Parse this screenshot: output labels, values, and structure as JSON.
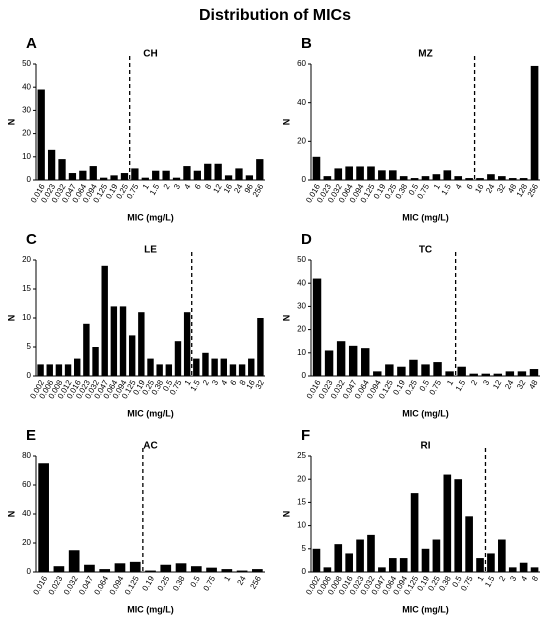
{
  "title": "Distribution of MICs",
  "chart_data": [
    {
      "type": "bar",
      "label": "A",
      "title": "CH",
      "xlabel": "MIC (mg/L)",
      "ylabel": "N",
      "color": "#000000",
      "categories": [
        "0.016",
        "0.023",
        "0.032",
        "0.047",
        "0.064",
        "0.094",
        "0.125",
        "0.19",
        "0.25",
        "0.75",
        "1",
        "1.5",
        "2",
        "3",
        "4",
        "6",
        "8",
        "12",
        "16",
        "24",
        "96",
        "256"
      ],
      "values": [
        39,
        13,
        9,
        3,
        4,
        6,
        1,
        2,
        3,
        5,
        1,
        4,
        4,
        1,
        6,
        4,
        7,
        7,
        2,
        5,
        2,
        9
      ],
      "breakpoint_after": 8,
      "ylim": [
        0,
        50
      ],
      "yticks": [
        0,
        10,
        20,
        30,
        40,
        50
      ]
    },
    {
      "type": "bar",
      "label": "B",
      "title": "MZ",
      "xlabel": "MIC (mg/L)",
      "ylabel": "N",
      "color": "#000000",
      "categories": [
        "0.016",
        "0.023",
        "0.032",
        "0.064",
        "0.094",
        "0.125",
        "0.19",
        "0.25",
        "0.38",
        "0.5",
        "0.75",
        "1",
        "1.5",
        "4",
        "6",
        "16",
        "24",
        "32",
        "48",
        "128",
        "256"
      ],
      "values": [
        12,
        2,
        6,
        7,
        7,
        7,
        5,
        5,
        2,
        1,
        2,
        3,
        5,
        2,
        1,
        1,
        3,
        2,
        1,
        1,
        59
      ],
      "breakpoint_after": 14,
      "ylim": [
        0,
        60
      ],
      "yticks": [
        0,
        20,
        40,
        60
      ]
    },
    {
      "type": "bar",
      "label": "C",
      "title": "LE",
      "xlabel": "MIC (mg/L)",
      "ylabel": "N",
      "color": "#000000",
      "categories": [
        "0.002",
        "0.006",
        "0.008",
        "0.012",
        "0.016",
        "0.023",
        "0.032",
        "0.047",
        "0.064",
        "0.094",
        "0.125",
        "0.19",
        "0.25",
        "0.38",
        "0.5",
        "0.75",
        "1",
        "1.5",
        "2",
        "3",
        "4",
        "6",
        "8",
        "16",
        "32"
      ],
      "values": [
        2,
        2,
        2,
        2,
        3,
        9,
        5,
        19,
        12,
        12,
        7,
        11,
        3,
        2,
        2,
        6,
        11,
        3,
        4,
        3,
        3,
        2,
        2,
        3,
        10
      ],
      "breakpoint_after": 16,
      "ylim": [
        0,
        20
      ],
      "yticks": [
        0,
        5,
        10,
        15,
        20
      ]
    },
    {
      "type": "bar",
      "label": "D",
      "title": "TC",
      "xlabel": "MIC (mg/L)",
      "ylabel": "N",
      "color": "#000000",
      "categories": [
        "0.016",
        "0.023",
        "0.032",
        "0.047",
        "0.064",
        "0.094",
        "0.125",
        "0.19",
        "0.25",
        "0.5",
        "0.75",
        "1",
        "1.5",
        "2",
        "3",
        "12",
        "24",
        "32",
        "48"
      ],
      "values": [
        42,
        11,
        15,
        13,
        12,
        2,
        5,
        4,
        7,
        5,
        6,
        2,
        4,
        1,
        1,
        1,
        2,
        2,
        3
      ],
      "breakpoint_after": 11,
      "ylim": [
        0,
        50
      ],
      "yticks": [
        0,
        10,
        20,
        30,
        40,
        50
      ]
    },
    {
      "type": "bar",
      "label": "E",
      "title": "AC",
      "xlabel": "MIC (mg/L)",
      "ylabel": "N",
      "color": "#000000",
      "categories": [
        "0.016",
        "0.023",
        "0.032",
        "0.047",
        "0.064",
        "0.094",
        "0.125",
        "0.19",
        "0.25",
        "0.38",
        "0.5",
        "0.75",
        "1",
        "24",
        "256"
      ],
      "values": [
        75,
        4,
        15,
        5,
        2,
        6,
        7,
        1,
        5,
        6,
        4,
        3,
        2,
        1,
        2
      ],
      "breakpoint_after": 6,
      "ylim": [
        0,
        80
      ],
      "yticks": [
        0,
        20,
        40,
        60,
        80
      ]
    },
    {
      "type": "bar",
      "label": "F",
      "title": "RI",
      "xlabel": "MIC (mg/L)",
      "ylabel": "N",
      "color": "#000000",
      "categories": [
        "0.002",
        "0.006",
        "0.008",
        "0.016",
        "0.023",
        "0.032",
        "0.047",
        "0.064",
        "0.094",
        "0.125",
        "0.19",
        "0.25",
        "0.38",
        "0.5",
        "0.75",
        "1",
        "1.5",
        "2",
        "3",
        "4",
        "8"
      ],
      "values": [
        5,
        1,
        6,
        4,
        7,
        8,
        1,
        3,
        3,
        17,
        5,
        7,
        21,
        20,
        12,
        3,
        4,
        7,
        1,
        2,
        1
      ],
      "breakpoint_after": 15,
      "ylim": [
        0,
        25
      ],
      "yticks": [
        0,
        5,
        10,
        15,
        20,
        25
      ]
    }
  ]
}
